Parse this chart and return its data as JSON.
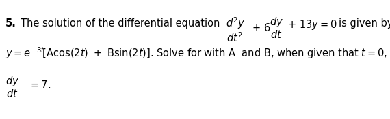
{
  "background_color": "#ffffff",
  "figsize": [
    5.7,
    1.75
  ],
  "dpi": 100,
  "text_fontsize": 10.5,
  "bold_fontsize": 10.5
}
